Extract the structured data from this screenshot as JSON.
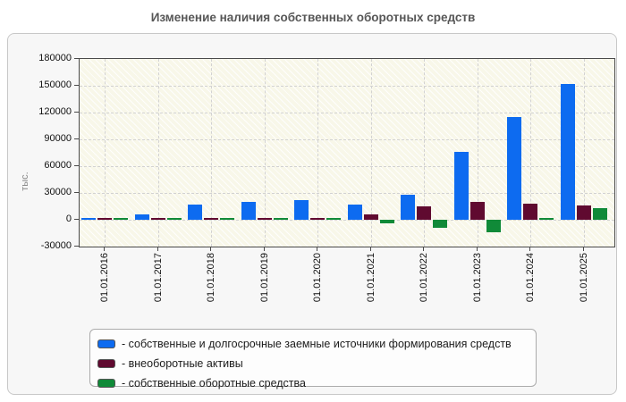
{
  "title": "Изменение наличия собственных оборотных средств",
  "y_axis_label": "тыс.",
  "chart_data": {
    "type": "bar",
    "title": "Изменение наличия собственных оборотных средств",
    "ylabel": "тыс.",
    "xlabel": "",
    "categories": [
      "01.01.2016",
      "01.01.2017",
      "01.01.2018",
      "01.01.2019",
      "01.01.2020",
      "01.01.2021",
      "01.01.2022",
      "01.01.2023",
      "01.01.2024",
      "01.01.2025"
    ],
    "series": [
      {
        "name": "собственные и долгосрочные заемные источники формирования средств",
        "color": "#0d6bf0",
        "values": [
          1500,
          6000,
          17000,
          20000,
          22000,
          17000,
          28000,
          76000,
          115000,
          152000
        ]
      },
      {
        "name": "внеоборотные активы",
        "color": "#600a30",
        "values": [
          700,
          700,
          800,
          800,
          800,
          6500,
          15000,
          20000,
          18000,
          16000
        ]
      },
      {
        "name": "собственные оборотные средства",
        "color": "#108a38",
        "values": [
          800,
          800,
          900,
          900,
          900,
          -4000,
          -9000,
          -14000,
          1000,
          13000
        ]
      }
    ],
    "ylim": [
      -30000,
      180000
    ],
    "y_ticks": [
      180000,
      150000,
      120000,
      90000,
      60000,
      30000,
      0,
      -30000
    ],
    "grid": "dashed horizontal and vertical gridlines",
    "legend_position": "bottom box"
  },
  "legend": {
    "items": [
      {
        "label": "- собственные и долгосрочные заемные источники формирования средств",
        "color": "#0d6bf0"
      },
      {
        "label": "- внеоборотные активы",
        "color": "#600a30"
      },
      {
        "label": "- собственные оборотные средства",
        "color": "#108a38"
      }
    ]
  },
  "colors": {
    "plot_background": "#f8f7e9",
    "panel_background": "#f7f7f7",
    "grid": "#d2d2d2",
    "axis": "#4a4a4a",
    "title_text": "#575757"
  }
}
